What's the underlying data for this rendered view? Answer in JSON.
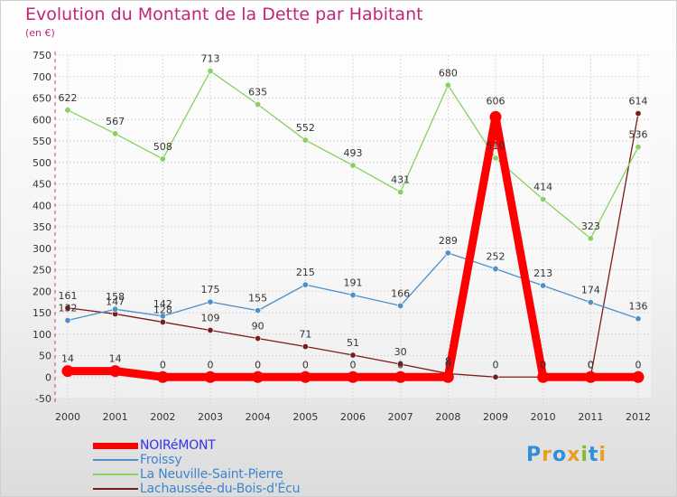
{
  "title": "Evolution du Montant de la Dette par Habitant",
  "subtitle": "(en €)",
  "brand": {
    "text": "Proxiti",
    "letters": [
      {
        "ch": "P",
        "color": "#2f8fd8"
      },
      {
        "ch": "r",
        "color": "#e8a020"
      },
      {
        "ch": "o",
        "color": "#2f8fd8"
      },
      {
        "ch": "x",
        "color": "#e8a020"
      },
      {
        "ch": "i",
        "color": "#7cbf2a"
      },
      {
        "ch": "t",
        "color": "#2f8fd8"
      },
      {
        "ch": "i",
        "color": "#e8a020"
      }
    ]
  },
  "chart_data": {
    "type": "line",
    "title": "Evolution du Montant de la Dette par Habitant",
    "ylabel": "(en €)",
    "xlabel": "",
    "x": [
      "2000",
      "2001",
      "2002",
      "2003",
      "2004",
      "2005",
      "2006",
      "2007",
      "2008",
      "2009",
      "2010",
      "2011",
      "2012"
    ],
    "ylim": [
      -50,
      750
    ],
    "yticks": [
      -50,
      0,
      50,
      100,
      150,
      200,
      250,
      300,
      350,
      400,
      450,
      500,
      550,
      600,
      650,
      700,
      750
    ],
    "grid": true,
    "legend_position": "bottom-left",
    "series": [
      {
        "name": "NOIRéMONT",
        "color": "#ff0000",
        "text_color": "#3333ee",
        "values": [
          14,
          14,
          0,
          0,
          0,
          0,
          0,
          0,
          0,
          606,
          0,
          0,
          0
        ],
        "labels": [
          "14",
          "14",
          "0",
          "0",
          "0",
          "0",
          "0",
          "0",
          "0",
          "606",
          "0",
          "0",
          "0"
        ]
      },
      {
        "name": "Froissy",
        "color": "#4f90c8",
        "text_color": "#3a86d0",
        "values": [
          132,
          158,
          142,
          175,
          155,
          215,
          191,
          166,
          289,
          252,
          213,
          174,
          136
        ],
        "labels": [
          "132",
          "158",
          "142",
          "175",
          "155",
          "215",
          "191",
          "166",
          "289",
          "252",
          "213",
          "174",
          "136"
        ]
      },
      {
        "name": "La Neuville-Saint-Pierre",
        "color": "#88d060",
        "text_color": "#3a86d0",
        "values": [
          622,
          567,
          508,
          713,
          635,
          552,
          493,
          431,
          680,
          510,
          414,
          323,
          536
        ],
        "labels": [
          "622",
          "567",
          "508",
          "713",
          "635",
          "552",
          "493",
          "431",
          "680",
          "510",
          "414",
          "323",
          "536"
        ]
      },
      {
        "name": "Lachaussée-du-Bois-d'Écu",
        "color": "#7a1c1c",
        "text_color": "#3a86d0",
        "values": [
          161,
          147,
          128,
          109,
          90,
          71,
          51,
          30,
          8,
          0,
          0,
          0,
          614
        ],
        "labels": [
          "161",
          "147",
          "128",
          "109",
          "90",
          "71",
          "51",
          "30",
          "8",
          "0",
          "0",
          "0",
          "614"
        ]
      }
    ]
  }
}
